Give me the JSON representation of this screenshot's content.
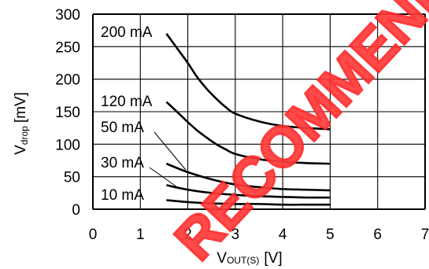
{
  "chart_data": {
    "type": "line",
    "x_axis": {
      "label_main": "V",
      "label_sub": "OUT(S)",
      "label_unit": "[V]",
      "min": 0,
      "max": 7,
      "ticks": [
        0,
        1,
        2,
        3,
        4,
        5,
        6,
        7
      ]
    },
    "y_axis": {
      "label_main": "V",
      "label_sub": "drop",
      "label_unit": "[mV]",
      "min": 0,
      "max": 300,
      "ticks": [
        0,
        50,
        100,
        150,
        200,
        250,
        300
      ]
    },
    "grid": true,
    "series": [
      {
        "name": "200 mA",
        "x": [
          1.55,
          1.8,
          2.0,
          2.2,
          2.4,
          2.6,
          2.8,
          3.0,
          3.5,
          4.0,
          4.5,
          5.0
        ],
        "y": [
          270,
          245,
          225,
          203,
          185,
          170,
          157,
          147,
          135,
          128,
          125,
          123
        ]
      },
      {
        "name": "120 mA",
        "x": [
          1.55,
          1.8,
          2.0,
          2.2,
          2.4,
          2.6,
          2.8,
          3.0,
          3.5,
          4.0,
          4.5,
          5.0
        ],
        "y": [
          165,
          148,
          134,
          121,
          110,
          100,
          92,
          85,
          77,
          73,
          71,
          70
        ]
      },
      {
        "name": "50 mA",
        "x": [
          1.55,
          2.0,
          2.5,
          3.0,
          3.5,
          4.0,
          4.5,
          5.0
        ],
        "y": [
          70,
          57,
          46,
          38,
          34,
          31,
          30,
          29
        ]
      },
      {
        "name": "30 mA",
        "x": [
          1.55,
          2.0,
          2.5,
          3.0,
          3.5,
          4.0,
          4.5,
          5.0
        ],
        "y": [
          37,
          30,
          25,
          22,
          20,
          19,
          18,
          18
        ]
      },
      {
        "name": "10 mA",
        "x": [
          1.55,
          2.0,
          2.5,
          3.0,
          3.5,
          4.0,
          4.5,
          5.0
        ],
        "y": [
          14,
          11,
          9,
          8,
          8,
          7,
          7,
          7
        ]
      }
    ],
    "watermark": "RECOMMENDED",
    "watermark_color": "#ff2a2a"
  }
}
